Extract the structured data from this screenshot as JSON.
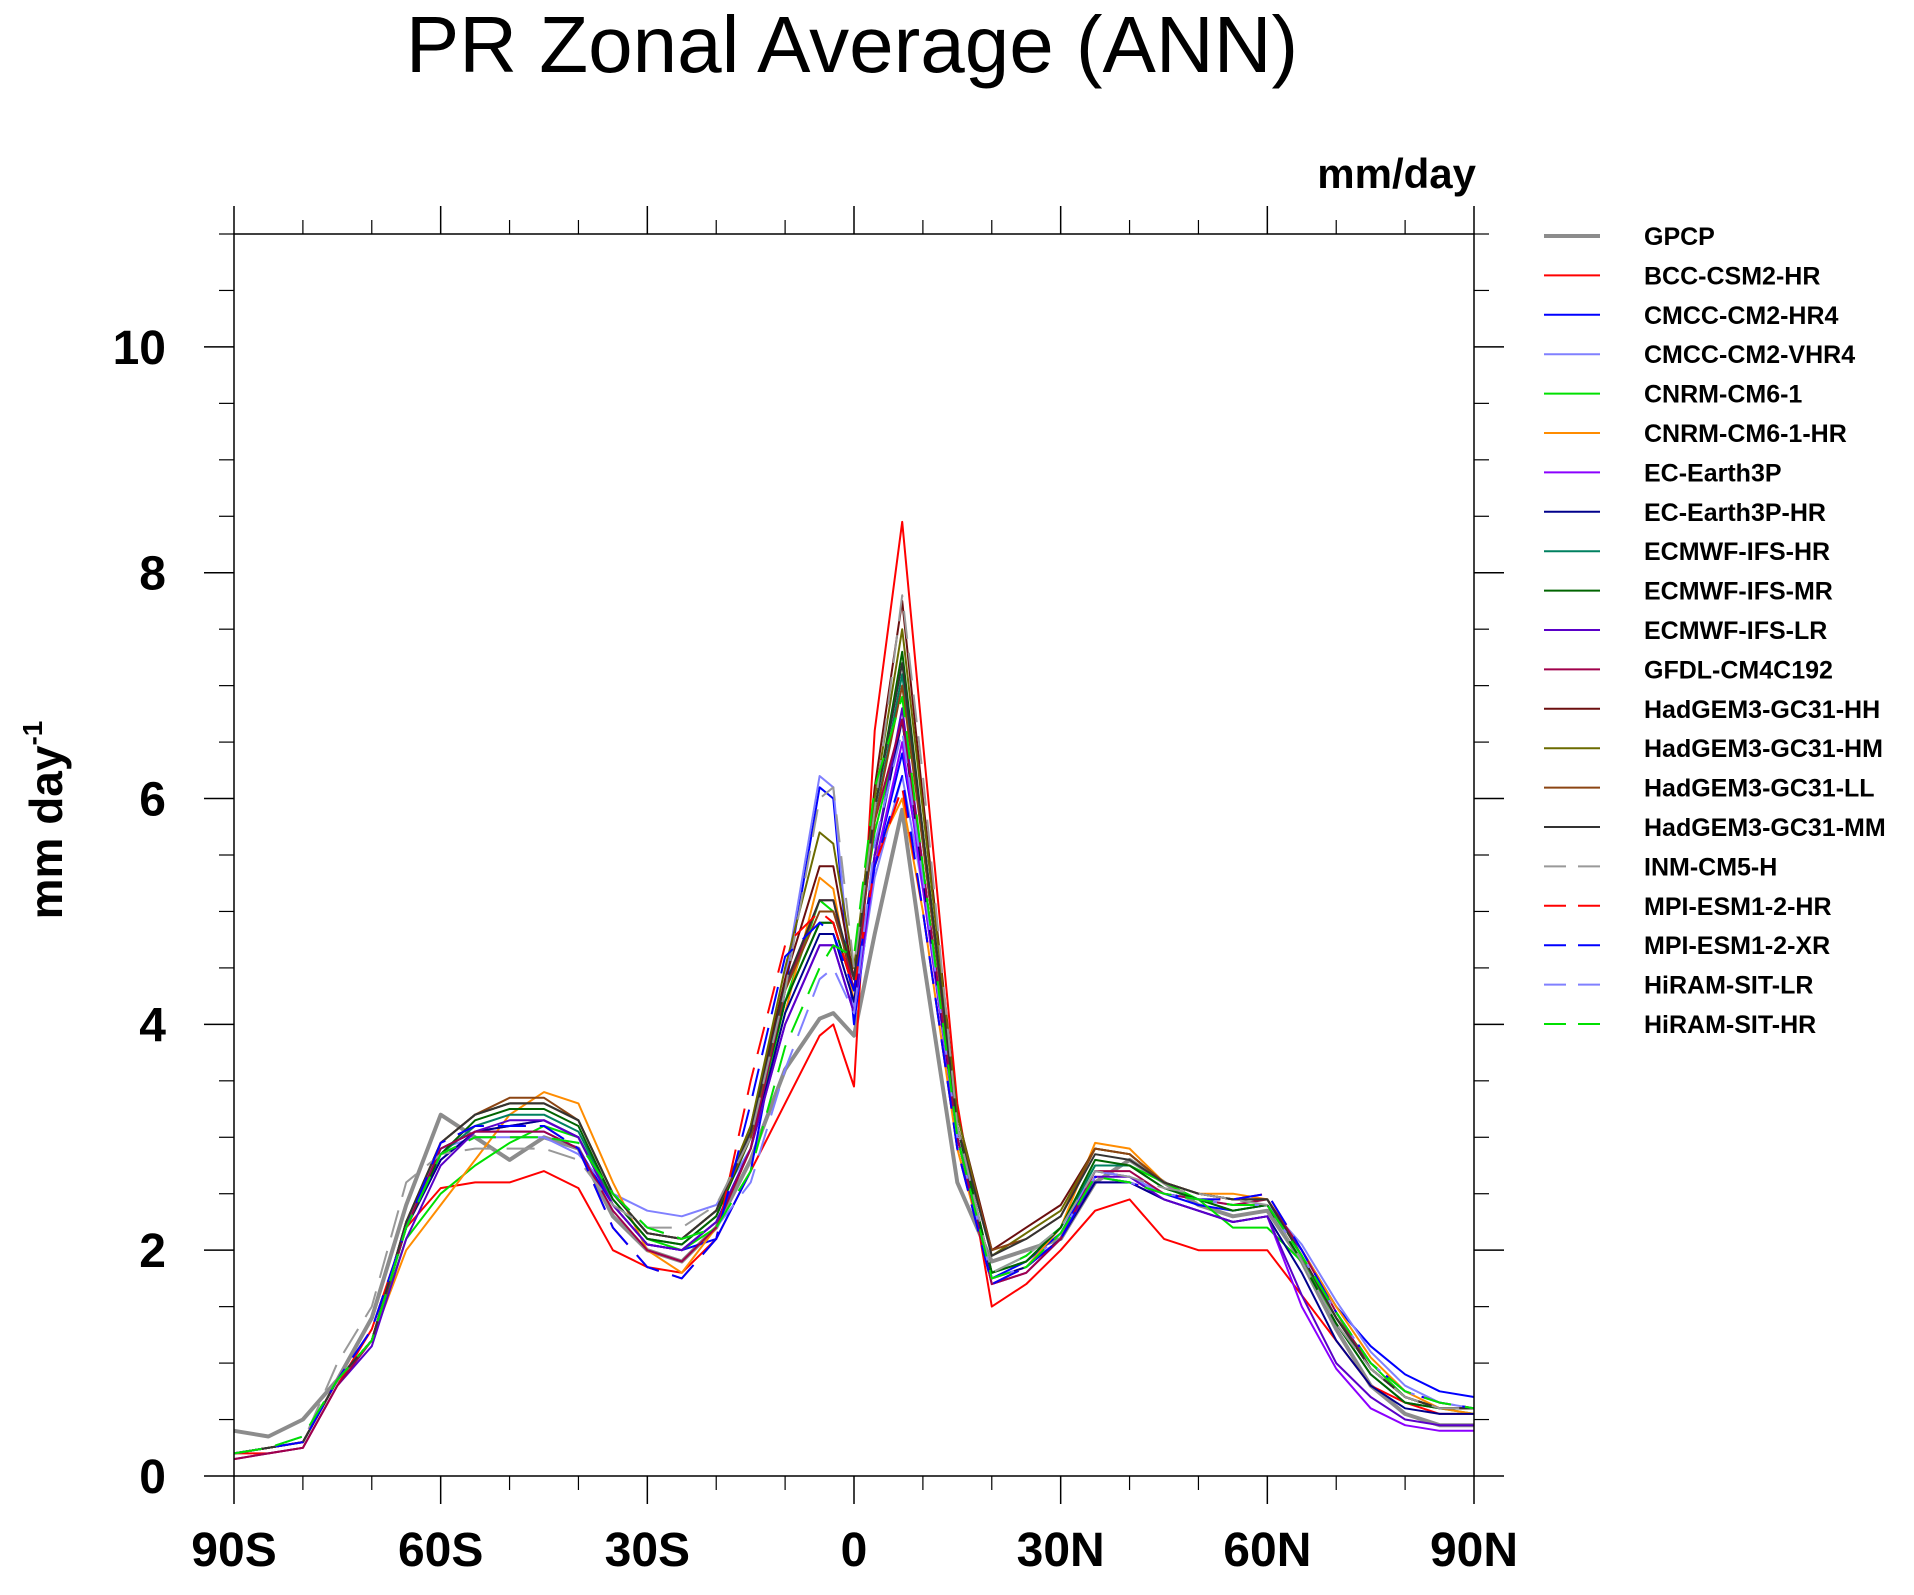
{
  "chart_data": {
    "type": "line",
    "title": "PR Zonal Average (ANN)",
    "units_label": "mm/day",
    "ylabel": "mm day",
    "ylabel_superscript": "-1",
    "xlim": [
      -90,
      90
    ],
    "ylim": [
      0,
      11
    ],
    "xticks": [
      {
        "value": -90,
        "label": "90S"
      },
      {
        "value": -60,
        "label": "60S"
      },
      {
        "value": -30,
        "label": "30S"
      },
      {
        "value": 0,
        "label": "0"
      },
      {
        "value": 30,
        "label": "30N"
      },
      {
        "value": 60,
        "label": "60N"
      },
      {
        "value": 90,
        "label": "90N"
      }
    ],
    "yticks": [
      {
        "value": 0,
        "label": "0"
      },
      {
        "value": 2,
        "label": "2"
      },
      {
        "value": 4,
        "label": "4"
      },
      {
        "value": 6,
        "label": "6"
      },
      {
        "value": 8,
        "label": "8"
      },
      {
        "value": 10,
        "label": "10"
      }
    ],
    "grid": false,
    "legend_position": "right",
    "x": [
      -90,
      -85,
      -80,
      -75,
      -70,
      -65,
      -60,
      -55,
      -50,
      -45,
      -40,
      -35,
      -30,
      -25,
      -20,
      -15,
      -10,
      -5,
      -3,
      0,
      3,
      7,
      10,
      15,
      20,
      25,
      30,
      35,
      40,
      45,
      50,
      55,
      60,
      65,
      70,
      75,
      80,
      85,
      90
    ],
    "series": [
      {
        "name": "GPCP",
        "color": "#8c8c8c",
        "dash": false,
        "width": 4,
        "values": [
          0.4,
          0.35,
          0.5,
          0.85,
          1.4,
          2.4,
          3.2,
          3.0,
          2.8,
          3.0,
          2.9,
          2.3,
          2.0,
          1.9,
          2.2,
          2.8,
          3.6,
          4.05,
          4.1,
          3.9,
          4.8,
          5.9,
          4.6,
          2.6,
          1.9,
          2.0,
          2.1,
          2.6,
          2.8,
          2.6,
          2.4,
          2.3,
          2.35,
          1.9,
          1.3,
          0.8,
          0.55,
          0.45,
          0.45
        ]
      },
      {
        "name": "BCC-CSM2-HR",
        "color": "#ff0000",
        "dash": false,
        "width": 2,
        "values": [
          0.2,
          0.2,
          0.25,
          0.8,
          1.3,
          2.2,
          2.55,
          2.6,
          2.6,
          2.7,
          2.55,
          2.0,
          1.85,
          1.8,
          2.1,
          2.7,
          3.3,
          3.9,
          4.0,
          3.45,
          6.6,
          8.45,
          6.5,
          3.3,
          1.5,
          1.7,
          2.0,
          2.35,
          2.45,
          2.1,
          2.0,
          2.0,
          2.0,
          1.6,
          1.2,
          0.8,
          0.65,
          0.55,
          0.55
        ]
      },
      {
        "name": "CMCC-CM2-HR4",
        "color": "#0000ff",
        "dash": false,
        "width": 2,
        "values": [
          0.2,
          0.25,
          0.3,
          0.85,
          1.2,
          2.2,
          2.9,
          3.05,
          3.05,
          3.05,
          2.9,
          2.4,
          2.05,
          2.0,
          2.1,
          2.7,
          4.3,
          6.1,
          6.0,
          4.0,
          5.4,
          6.4,
          5.3,
          3.0,
          1.75,
          1.9,
          2.15,
          2.7,
          2.65,
          2.5,
          2.4,
          2.35,
          2.4,
          2.0,
          1.5,
          1.15,
          0.9,
          0.75,
          0.7
        ]
      },
      {
        "name": "CMCC-CM2-VHR4",
        "color": "#8080ff",
        "dash": false,
        "width": 2,
        "values": [
          0.2,
          0.25,
          0.3,
          0.85,
          1.2,
          2.2,
          2.9,
          3.0,
          3.0,
          3.0,
          2.85,
          2.5,
          2.35,
          2.3,
          2.4,
          2.9,
          4.4,
          6.2,
          6.1,
          4.1,
          5.3,
          6.2,
          5.2,
          3.0,
          1.8,
          1.95,
          2.2,
          2.7,
          2.65,
          2.5,
          2.45,
          2.4,
          2.4,
          2.05,
          1.55,
          1.1,
          0.8,
          0.65,
          0.6
        ]
      },
      {
        "name": "CNRM-CM6-1",
        "color": "#00e000",
        "dash": false,
        "width": 2,
        "values": [
          0.2,
          0.25,
          0.3,
          0.85,
          1.2,
          2.1,
          2.5,
          2.75,
          2.95,
          3.1,
          3.0,
          2.45,
          2.1,
          2.0,
          2.2,
          2.9,
          4.2,
          5.1,
          5.0,
          4.5,
          5.7,
          6.7,
          5.3,
          3.0,
          1.8,
          1.95,
          2.2,
          2.75,
          2.75,
          2.6,
          2.45,
          2.2,
          2.2,
          1.9,
          1.4,
          1.0,
          0.7,
          0.6,
          0.55
        ]
      },
      {
        "name": "CNRM-CM6-1-HR",
        "color": "#ff8c00",
        "dash": false,
        "width": 2,
        "values": [
          0.2,
          0.25,
          0.3,
          0.85,
          1.2,
          2.0,
          2.4,
          2.8,
          3.2,
          3.4,
          3.3,
          2.6,
          2.0,
          1.8,
          2.2,
          2.9,
          4.1,
          5.3,
          5.2,
          4.2,
          5.5,
          6.0,
          5.0,
          2.9,
          1.75,
          1.85,
          2.2,
          2.95,
          2.9,
          2.6,
          2.5,
          2.5,
          2.45,
          2.0,
          1.5,
          1.05,
          0.75,
          0.6,
          0.55
        ]
      },
      {
        "name": "EC-Earth3P",
        "color": "#8b00ff",
        "dash": false,
        "width": 2,
        "values": [
          0.2,
          0.25,
          0.3,
          0.85,
          1.2,
          2.2,
          2.8,
          3.05,
          3.1,
          3.15,
          3.0,
          2.4,
          2.05,
          2.0,
          2.25,
          2.9,
          4.0,
          4.7,
          4.7,
          4.1,
          5.4,
          6.5,
          5.2,
          3.0,
          1.75,
          1.85,
          2.1,
          2.6,
          2.6,
          2.45,
          2.35,
          2.25,
          2.3,
          1.5,
          0.95,
          0.6,
          0.45,
          0.4,
          0.4
        ]
      },
      {
        "name": "EC-Earth3P-HR",
        "color": "#00008b",
        "dash": false,
        "width": 2,
        "values": [
          0.2,
          0.25,
          0.3,
          0.85,
          1.2,
          2.2,
          2.8,
          3.05,
          3.1,
          3.15,
          3.0,
          2.4,
          2.05,
          2.0,
          2.25,
          2.9,
          4.1,
          4.8,
          4.8,
          4.2,
          5.5,
          6.7,
          5.3,
          3.0,
          1.75,
          1.85,
          2.1,
          2.6,
          2.6,
          2.45,
          2.35,
          2.25,
          2.3,
          1.8,
          1.2,
          0.8,
          0.6,
          0.55,
          0.55
        ]
      },
      {
        "name": "ECMWF-IFS-HR",
        "color": "#008060",
        "dash": false,
        "width": 2,
        "values": [
          0.2,
          0.25,
          0.3,
          0.85,
          1.2,
          2.2,
          2.85,
          3.1,
          3.2,
          3.2,
          3.05,
          2.45,
          2.1,
          2.05,
          2.3,
          3.0,
          4.2,
          4.9,
          4.9,
          4.3,
          5.8,
          7.1,
          5.6,
          3.1,
          1.8,
          1.9,
          2.2,
          2.75,
          2.75,
          2.55,
          2.45,
          2.35,
          2.4,
          1.9,
          1.35,
          0.9,
          0.65,
          0.6,
          0.6
        ]
      },
      {
        "name": "ECMWF-IFS-MR",
        "color": "#006400",
        "dash": false,
        "width": 2,
        "values": [
          0.2,
          0.25,
          0.3,
          0.85,
          1.2,
          2.2,
          2.85,
          3.15,
          3.25,
          3.25,
          3.1,
          2.45,
          2.1,
          2.05,
          2.3,
          3.0,
          4.2,
          4.9,
          4.9,
          4.3,
          5.9,
          7.3,
          5.7,
          3.1,
          1.8,
          1.9,
          2.2,
          2.8,
          2.75,
          2.55,
          2.45,
          2.35,
          2.4,
          1.9,
          1.35,
          0.9,
          0.65,
          0.6,
          0.6
        ]
      },
      {
        "name": "ECMWF-IFS-LR",
        "color": "#5a00c8",
        "dash": false,
        "width": 2,
        "values": [
          0.15,
          0.2,
          0.25,
          0.8,
          1.15,
          2.1,
          2.75,
          3.05,
          3.15,
          3.15,
          3.0,
          2.4,
          2.05,
          2.0,
          2.25,
          2.9,
          4.0,
          4.7,
          4.7,
          4.1,
          5.5,
          6.8,
          5.4,
          3.0,
          1.7,
          1.8,
          2.1,
          2.65,
          2.65,
          2.45,
          2.35,
          2.25,
          2.3,
          1.6,
          1.0,
          0.7,
          0.5,
          0.45,
          0.45
        ]
      },
      {
        "name": "GFDL-CM4C192",
        "color": "#a0004b",
        "dash": false,
        "width": 2,
        "values": [
          0.15,
          0.2,
          0.25,
          0.8,
          1.2,
          2.2,
          2.9,
          3.05,
          3.05,
          3.05,
          2.9,
          2.35,
          2.0,
          1.9,
          2.2,
          2.9,
          4.3,
          5.1,
          5.1,
          4.3,
          5.8,
          6.7,
          5.4,
          3.0,
          1.7,
          1.8,
          2.1,
          2.7,
          2.7,
          2.5,
          2.45,
          2.4,
          2.45,
          2.0,
          1.45,
          0.95,
          0.7,
          0.6,
          0.6
        ]
      },
      {
        "name": "HadGEM3-GC31-HH",
        "color": "#6b0f0f",
        "dash": false,
        "width": 2,
        "values": [
          0.2,
          0.25,
          0.3,
          0.85,
          1.2,
          2.25,
          2.95,
          3.2,
          3.3,
          3.3,
          3.15,
          2.5,
          2.15,
          2.1,
          2.35,
          3.1,
          4.4,
          5.4,
          5.4,
          4.4,
          6.1,
          7.75,
          6.0,
          3.2,
          2.0,
          2.2,
          2.4,
          2.9,
          2.85,
          2.6,
          2.5,
          2.45,
          2.45,
          1.95,
          1.4,
          0.95,
          0.7,
          0.6,
          0.6
        ]
      },
      {
        "name": "HadGEM3-GC31-HM",
        "color": "#6b6b00",
        "dash": false,
        "width": 2,
        "values": [
          0.2,
          0.25,
          0.3,
          0.85,
          1.2,
          2.25,
          2.95,
          3.2,
          3.3,
          3.3,
          3.15,
          2.5,
          2.15,
          2.1,
          2.35,
          3.1,
          4.5,
          5.7,
          5.6,
          4.5,
          6.0,
          7.5,
          5.9,
          3.2,
          1.95,
          2.15,
          2.35,
          2.9,
          2.85,
          2.6,
          2.5,
          2.45,
          2.45,
          1.95,
          1.4,
          0.95,
          0.7,
          0.6,
          0.6
        ]
      },
      {
        "name": "HadGEM3-GC31-LL",
        "color": "#8b4513",
        "dash": false,
        "width": 2,
        "values": [
          0.2,
          0.25,
          0.3,
          0.85,
          1.2,
          2.25,
          2.95,
          3.2,
          3.35,
          3.35,
          3.15,
          2.5,
          2.15,
          2.1,
          2.35,
          3.0,
          4.3,
          5.0,
          5.0,
          4.4,
          5.8,
          7.0,
          5.6,
          3.1,
          2.0,
          2.1,
          2.3,
          2.9,
          2.85,
          2.6,
          2.5,
          2.45,
          2.45,
          1.95,
          1.4,
          0.95,
          0.7,
          0.6,
          0.6
        ]
      },
      {
        "name": "HadGEM3-GC31-MM",
        "color": "#333333",
        "dash": false,
        "width": 2,
        "values": [
          0.2,
          0.25,
          0.3,
          0.85,
          1.2,
          2.25,
          2.95,
          3.2,
          3.3,
          3.3,
          3.15,
          2.5,
          2.15,
          2.1,
          2.35,
          3.05,
          4.35,
          5.1,
          5.1,
          4.4,
          5.9,
          7.2,
          5.7,
          3.1,
          1.95,
          2.1,
          2.3,
          2.85,
          2.8,
          2.6,
          2.5,
          2.45,
          2.45,
          1.95,
          1.4,
          0.95,
          0.7,
          0.6,
          0.6
        ]
      },
      {
        "name": "INM-CM5-H",
        "color": "#999999",
        "dash": true,
        "width": 2,
        "values": [
          0.2,
          0.25,
          0.3,
          1.0,
          1.5,
          2.6,
          2.85,
          2.9,
          2.9,
          2.9,
          2.8,
          2.4,
          2.2,
          2.2,
          2.4,
          3.0,
          4.3,
          6.0,
          6.1,
          4.5,
          5.9,
          7.8,
          6.2,
          3.1,
          1.8,
          1.95,
          2.2,
          2.7,
          2.65,
          2.55,
          2.5,
          2.45,
          2.4,
          1.9,
          1.35,
          0.95,
          0.7,
          0.6,
          0.6
        ]
      },
      {
        "name": "MPI-ESM1-2-HR",
        "color": "#ff0000",
        "dash": true,
        "width": 2,
        "values": [
          0.2,
          0.25,
          0.3,
          0.85,
          1.3,
          2.2,
          2.95,
          3.1,
          3.1,
          3.1,
          2.9,
          2.2,
          1.85,
          1.75,
          2.1,
          3.5,
          4.7,
          5.0,
          4.9,
          4.3,
          5.4,
          6.1,
          5.0,
          2.9,
          1.7,
          1.85,
          2.1,
          2.65,
          2.6,
          2.5,
          2.45,
          2.45,
          2.5,
          2.0,
          1.45,
          1.0,
          0.75,
          0.65,
          0.6
        ]
      },
      {
        "name": "MPI-ESM1-2-XR",
        "color": "#0000ff",
        "dash": true,
        "width": 2,
        "values": [
          0.2,
          0.25,
          0.3,
          0.85,
          1.3,
          2.2,
          2.95,
          3.1,
          3.1,
          3.1,
          2.9,
          2.2,
          1.85,
          1.75,
          2.1,
          3.3,
          4.6,
          4.9,
          4.8,
          4.3,
          5.4,
          6.2,
          5.0,
          2.9,
          1.7,
          1.85,
          2.1,
          2.65,
          2.6,
          2.5,
          2.45,
          2.45,
          2.5,
          2.0,
          1.45,
          1.0,
          0.75,
          0.65,
          0.6
        ]
      },
      {
        "name": "HiRAM-SIT-LR",
        "color": "#8080ff",
        "dash": true,
        "width": 2,
        "values": [
          0.2,
          0.25,
          0.35,
          0.85,
          1.2,
          2.2,
          2.85,
          3.0,
          3.0,
          3.0,
          2.95,
          2.5,
          2.2,
          2.1,
          2.2,
          2.6,
          3.6,
          4.4,
          4.5,
          4.1,
          5.6,
          6.6,
          5.3,
          3.0,
          1.75,
          1.85,
          2.15,
          2.65,
          2.6,
          2.5,
          2.45,
          2.4,
          2.4,
          1.95,
          1.45,
          1.0,
          0.75,
          0.65,
          0.6
        ]
      },
      {
        "name": "HiRAM-SIT-HR",
        "color": "#00e000",
        "dash": true,
        "width": 2,
        "values": [
          0.2,
          0.25,
          0.35,
          0.85,
          1.2,
          2.2,
          2.85,
          3.0,
          3.0,
          3.0,
          2.95,
          2.5,
          2.2,
          2.1,
          2.2,
          2.7,
          3.8,
          4.5,
          4.7,
          4.6,
          6.1,
          6.9,
          5.4,
          3.0,
          1.75,
          1.85,
          2.15,
          2.65,
          2.6,
          2.5,
          2.45,
          2.4,
          2.4,
          1.95,
          1.45,
          1.0,
          0.75,
          0.65,
          0.6
        ]
      }
    ]
  }
}
